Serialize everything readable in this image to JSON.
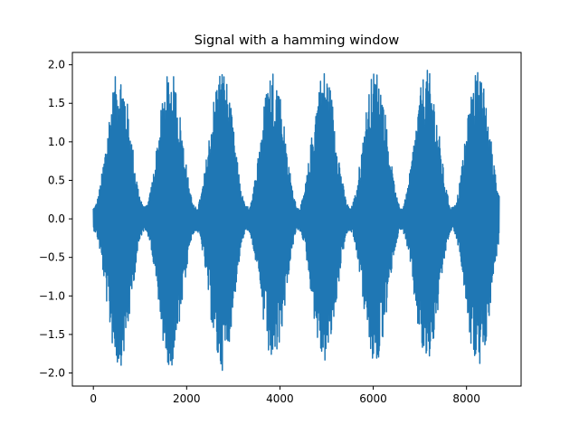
{
  "chart_data": {
    "type": "line",
    "title": "Signal with a hamming window",
    "xlabel": "",
    "ylabel": "",
    "xlim": [
      -450,
      9170
    ],
    "ylim": [
      -2.17,
      2.16
    ],
    "x_ticks": [
      0,
      2000,
      4000,
      6000,
      8000
    ],
    "x_tick_labels": [
      "0",
      "2000",
      "4000",
      "6000",
      "8000"
    ],
    "y_ticks": [
      -2.0,
      -1.5,
      -1.0,
      -0.5,
      0.0,
      0.5,
      1.0,
      1.5,
      2.0
    ],
    "y_tick_labels": [
      "−2.0",
      "−1.5",
      "−1.0",
      "−0.5",
      "0.0",
      "0.5",
      "1.0",
      "1.5",
      "2.0"
    ],
    "grid": false,
    "series": [
      {
        "color": "#1f77b4",
        "description_of_shape": "8 consecutive Hamming-windowed noise bursts",
        "segment_length": 1100,
        "segment_starts": [
          0,
          1100,
          2200,
          3300,
          4400,
          5500,
          6600,
          7700
        ],
        "segment_end": 8700,
        "window_floor": 0.08,
        "segment_peaks": [
          1.94,
          1.93,
          1.97,
          1.98,
          1.95,
          1.95,
          1.94,
          1.94
        ],
        "segment_troughs": [
          -1.93,
          -1.92,
          -1.97,
          -1.91,
          -1.88,
          -1.93,
          -1.9,
          -1.97
        ]
      }
    ]
  }
}
